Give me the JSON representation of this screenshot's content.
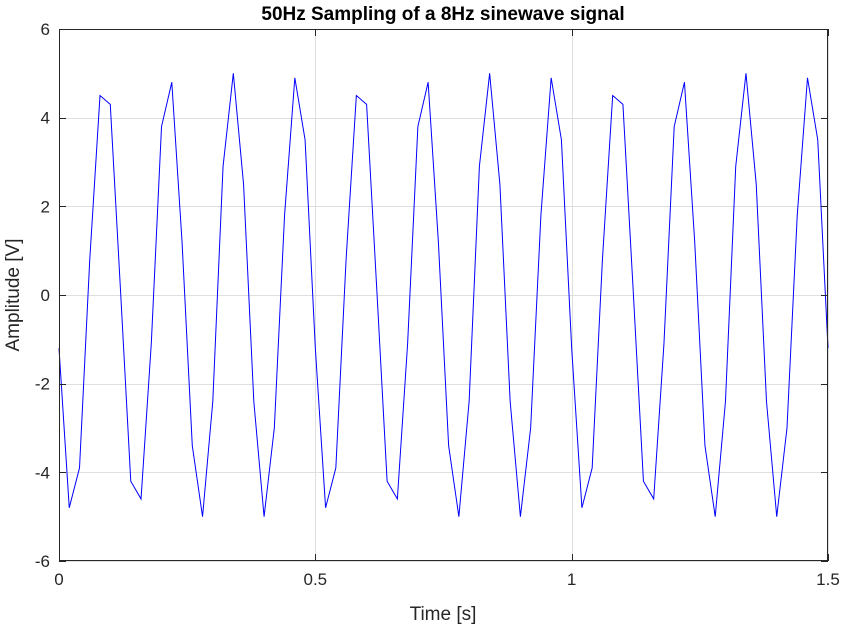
{
  "chart_data": {
    "type": "line",
    "title": "50Hz Sampling of a 8Hz sinewave signal",
    "xlabel": "Time [s]",
    "ylabel": "Amplitude [V]",
    "xlim": [
      0,
      1.5
    ],
    "ylim": [
      -6,
      6
    ],
    "xticks": [
      0,
      0.5,
      1,
      1.5
    ],
    "xtick_labels": [
      "0",
      "0.5",
      "1",
      "1.5"
    ],
    "yticks": [
      -6,
      -4,
      -2,
      0,
      2,
      4,
      6
    ],
    "ytick_labels": [
      "-6",
      "-4",
      "-2",
      "0",
      "2",
      "4",
      "6"
    ],
    "grid": true,
    "line_color": "#0000ff",
    "series": [
      {
        "x": [
          0,
          0.02,
          0.04,
          0.06,
          0.08,
          0.1,
          0.12,
          0.14,
          0.16,
          0.18,
          0.2,
          0.22,
          0.24,
          0.26,
          0.28,
          0.3,
          0.32,
          0.34,
          0.36,
          0.38,
          0.4,
          0.42,
          0.44,
          0.46,
          0.48,
          0.5,
          0.52,
          0.54,
          0.56,
          0.58,
          0.6,
          0.62,
          0.64,
          0.66,
          0.68,
          0.7,
          0.72,
          0.74,
          0.76,
          0.78,
          0.8,
          0.82,
          0.84,
          0.86,
          0.88,
          0.9,
          0.92,
          0.94,
          0.96,
          0.98,
          1.0,
          1.02,
          1.04,
          1.06,
          1.08,
          1.1,
          1.12,
          1.14,
          1.16,
          1.18,
          1.2,
          1.22,
          1.24,
          1.26,
          1.28,
          1.3,
          1.32,
          1.34,
          1.36,
          1.38,
          1.4,
          1.42,
          1.44,
          1.46,
          1.48,
          1.5
        ],
        "y": [
          -1.2,
          -4.8,
          -3.9,
          0.8,
          4.5,
          4.3,
          0.1,
          -4.2,
          -4.6,
          -1.1,
          3.8,
          4.8,
          1.2,
          -3.4,
          -5.0,
          -2.4,
          2.9,
          5.0,
          2.5,
          -2.4,
          -5.0,
          -3.0,
          1.8,
          4.9,
          3.5,
          -1.2,
          -4.8,
          -3.9,
          0.8,
          4.5,
          4.3,
          0.1,
          -4.2,
          -4.6,
          -1.1,
          3.8,
          4.8,
          1.2,
          -3.4,
          -5.0,
          -2.4,
          2.9,
          5.0,
          2.5,
          -2.4,
          -5.0,
          -3.0,
          1.8,
          4.9,
          3.5,
          -1.2,
          -4.8,
          -3.9,
          0.8,
          4.5,
          4.3,
          0.1,
          -4.2,
          -4.6,
          -1.1,
          3.8,
          4.8,
          1.2,
          -3.4,
          -5.0,
          -2.4,
          2.9,
          5.0,
          2.5,
          -2.4,
          -5.0,
          -3.0,
          1.8,
          4.9,
          3.5,
          -1.2
        ]
      }
    ]
  }
}
